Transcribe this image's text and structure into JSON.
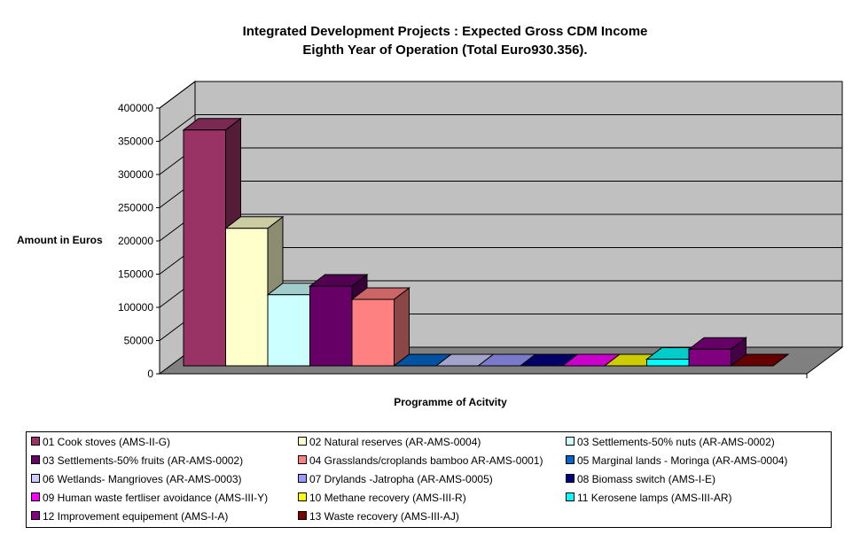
{
  "chart_data": {
    "type": "bar",
    "title": "Integrated Development Projects : Expected Gross CDM Income",
    "subtitle": "Eighth Year of Operation (Total Euro930.356).",
    "xlabel": "Programme of Acitvity",
    "ylabel": "Amount in Euros",
    "ylim": [
      0,
      400000
    ],
    "yticks": [
      "0",
      "50000",
      "100000",
      "150000",
      "200000",
      "250000",
      "300000",
      "350000",
      "400000"
    ],
    "grid": true,
    "legend_position": "bottom",
    "series": [
      {
        "name": "01 Cook stoves (AMS-II-G)",
        "value": 355000,
        "color": "#993366"
      },
      {
        "name": "02 Natural reserves (AR-AMS-0004)",
        "value": 207000,
        "color": "#FFFFCC"
      },
      {
        "name": "03 Settlements-50% nuts (AR-AMS-0002)",
        "value": 107000,
        "color": "#CCFFFF"
      },
      {
        "name": "03 Settlements-50% fruits (AR-AMS-0002)",
        "value": 120000,
        "color": "#660066"
      },
      {
        "name": "04 Grasslands/croplands bamboo AR-AMS-0001)",
        "value": 100000,
        "color": "#FF8080"
      },
      {
        "name": "05 Marginal lands - Moringa (AR-AMS-0004)",
        "value": 0,
        "color": "#0066CC"
      },
      {
        "name": "06 Wetlands- Mangrioves (AR-AMS-0003)",
        "value": 0,
        "color": "#CCCCFF"
      },
      {
        "name": "07 Drylands -Jatropha (AR-AMS-0005)",
        "value": 0,
        "color": "#9999FF"
      },
      {
        "name": "08 Biomass switch (AMS-I-E)",
        "value": 0,
        "color": "#000080"
      },
      {
        "name": "09 Human waste fertliser avoidance (AMS-III-Y)",
        "value": 0,
        "color": "#FF00FF"
      },
      {
        "name": "10 Methane recovery (AMS-III-R)",
        "value": 0,
        "color": "#FFFF00"
      },
      {
        "name": "11 Kerosene lamps (AMS-III-AR)",
        "value": 10000,
        "color": "#00FFFF"
      },
      {
        "name": "12 Improvement equipement (AMS-I-A)",
        "value": 25000,
        "color": "#800080"
      },
      {
        "name": "13 Waste recovery (AMS-III-AJ)",
        "value": 0,
        "color": "#800000"
      }
    ]
  }
}
